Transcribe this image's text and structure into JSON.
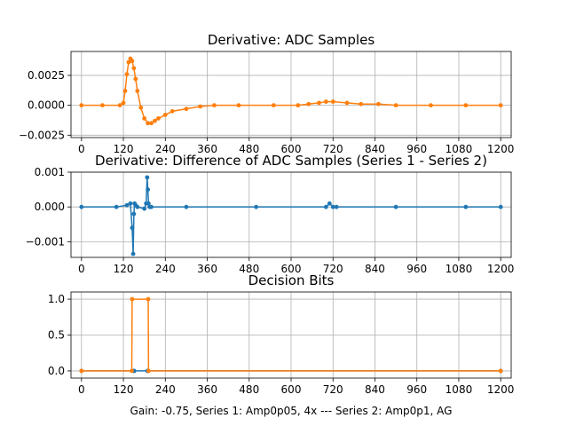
{
  "figure_note": "Gain: -0.75, Series 1: Amp0p05, 4x --- Series 2: Amp0p1, AG",
  "colors": {
    "series1": "#1f77b4",
    "series2": "#ff7f0e"
  },
  "chart_data": [
    {
      "type": "line",
      "title": "Derivative: ADC Samples",
      "xlim": [
        -30,
        1230
      ],
      "ylim": [
        -0.0027,
        0.0045
      ],
      "xticks": [
        0,
        120,
        240,
        360,
        480,
        600,
        720,
        840,
        960,
        1080,
        1200
      ],
      "xtick_labels": [
        "0",
        "120",
        "240",
        "360",
        "480",
        "600",
        "720",
        "840",
        "960",
        "1080",
        "1200"
      ],
      "yticks": [
        -0.0025,
        0.0,
        0.0025
      ],
      "ytick_labels": [
        "−0.0025",
        "0.0000",
        "0.0025"
      ],
      "grid": true,
      "series": [
        {
          "color": "#ff7f0e",
          "marker": "dot",
          "x": [
            0,
            60,
            110,
            120,
            125,
            130,
            135,
            140,
            145,
            150,
            155,
            160,
            170,
            180,
            190,
            200,
            210,
            220,
            240,
            260,
            300,
            340,
            380,
            450,
            550,
            620,
            650,
            680,
            700,
            720,
            760,
            800,
            850,
            900,
            1000,
            1100,
            1200
          ],
          "y": [
            0.0,
            0.0,
            0.0,
            0.0002,
            0.0012,
            0.0026,
            0.0036,
            0.0039,
            0.0037,
            0.0031,
            0.0022,
            0.0012,
            -0.0002,
            -0.0011,
            -0.0015,
            -0.0015,
            -0.0013,
            -0.0011,
            -0.0008,
            -0.0005,
            -0.0003,
            -0.0001,
            0.0,
            0.0,
            0.0,
            0.0,
            0.0001,
            0.0002,
            0.0003,
            0.0003,
            0.0002,
            0.0001,
            0.0001,
            0.0,
            0.0,
            0.0,
            0.0
          ]
        }
      ]
    },
    {
      "type": "line",
      "title": "Derivative: Difference of ADC Samples (Series 1 - Series 2)",
      "xlim": [
        -30,
        1230
      ],
      "ylim": [
        -0.00145,
        0.001
      ],
      "xticks": [
        0,
        120,
        240,
        360,
        480,
        600,
        720,
        840,
        960,
        1080,
        1200
      ],
      "xtick_labels": [
        "0",
        "120",
        "240",
        "360",
        "480",
        "600",
        "720",
        "840",
        "960",
        "1080",
        "1200"
      ],
      "yticks": [
        -0.001,
        0.0,
        0.001
      ],
      "ytick_labels": [
        "−0.001",
        "0.000",
        "0.001"
      ],
      "grid": true,
      "series": [
        {
          "color": "#1f77b4",
          "marker": "dot",
          "x": [
            0,
            100,
            130,
            140,
            145,
            148,
            150,
            152,
            155,
            160,
            180,
            185,
            188,
            190,
            192,
            195,
            200,
            300,
            500,
            700,
            710,
            720,
            730,
            900,
            1100,
            1200
          ],
          "y": [
            0.0,
            0.0,
            5e-05,
            0.0001,
            -0.0006,
            -0.00135,
            -0.0002,
            0.0001,
            5e-05,
            0.0,
            -5e-05,
            0.0001,
            0.00085,
            0.0005,
            0.0001,
            0.0,
            0.0,
            0.0,
            0.0,
            0.0,
            0.0001,
            0.0,
            0.0,
            0.0,
            0.0,
            0.0
          ]
        }
      ]
    },
    {
      "type": "line",
      "title": "Decision Bits",
      "xlim": [
        -30,
        1230
      ],
      "ylim": [
        -0.1,
        1.1
      ],
      "xticks": [
        0,
        120,
        240,
        360,
        480,
        600,
        720,
        840,
        960,
        1080,
        1200
      ],
      "xtick_labels": [
        "0",
        "120",
        "240",
        "360",
        "480",
        "600",
        "720",
        "840",
        "960",
        "1080",
        "1200"
      ],
      "yticks": [
        0.0,
        0.5,
        1.0
      ],
      "ytick_labels": [
        "0.0",
        "0.5",
        "1.0"
      ],
      "grid": true,
      "series": [
        {
          "color": "#1f77b4",
          "marker": "dot",
          "x": [
            0,
            150,
            151,
            189,
            190,
            1200
          ],
          "y": [
            0,
            0,
            0,
            0,
            0,
            0
          ]
        },
        {
          "color": "#ff7f0e",
          "marker": "dot",
          "x": [
            0,
            144,
            145,
            191,
            192,
            1200
          ],
          "y": [
            0,
            0,
            1,
            1,
            0,
            0
          ]
        }
      ]
    }
  ]
}
